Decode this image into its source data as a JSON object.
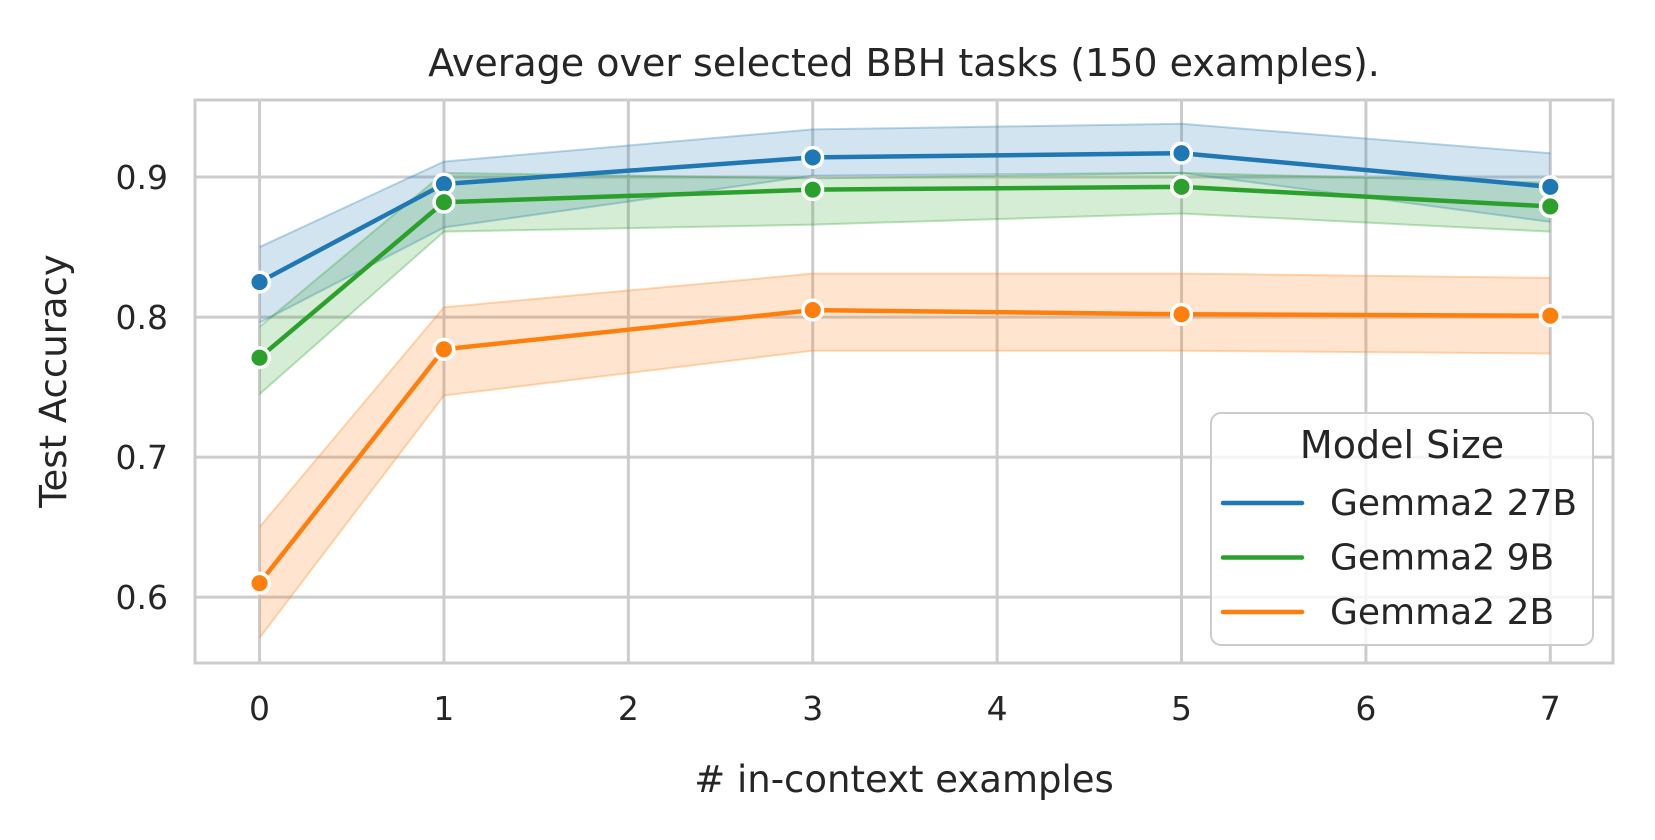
{
  "chart_data": {
    "type": "line",
    "title": "Average over selected BBH tasks (150 examples).",
    "xlabel": "# in-context examples",
    "ylabel": "Test Accuracy",
    "xlim": [
      -0.35,
      7.34
    ],
    "ylim": [
      0.553,
      0.955
    ],
    "xticks": [
      0,
      1,
      2,
      3,
      4,
      5,
      6,
      7
    ],
    "yticks": [
      0.6,
      0.7,
      0.8,
      0.9
    ],
    "grid": true,
    "x": [
      0,
      1,
      3,
      5,
      7
    ],
    "series": [
      {
        "name": "Gemma2 27B",
        "color": "#1f77b4",
        "values": [
          0.825,
          0.895,
          0.914,
          0.917,
          0.893
        ],
        "band_low": [
          0.796,
          0.864,
          0.901,
          0.903,
          0.868
        ],
        "band_high": [
          0.85,
          0.911,
          0.934,
          0.938,
          0.917
        ]
      },
      {
        "name": "Gemma2 9B",
        "color": "#2ca02c",
        "values": [
          0.771,
          0.882,
          0.891,
          0.893,
          0.879
        ],
        "band_low": [
          0.745,
          0.861,
          0.866,
          0.874,
          0.861
        ],
        "band_high": [
          0.793,
          0.903,
          0.899,
          0.903,
          0.896
        ]
      },
      {
        "name": "Gemma2 2B",
        "color": "#ff7f0e",
        "values": [
          0.61,
          0.777,
          0.805,
          0.802,
          0.801
        ],
        "band_low": [
          0.571,
          0.744,
          0.776,
          0.776,
          0.774
        ],
        "band_high": [
          0.65,
          0.807,
          0.831,
          0.831,
          0.828
        ]
      }
    ],
    "legend": {
      "title": "Model Size",
      "position": "lower right"
    }
  },
  "colors": {
    "background": "#ffffff",
    "grid": "#cccccc",
    "text": "#262626",
    "marker_edge": "#ffffff"
  }
}
